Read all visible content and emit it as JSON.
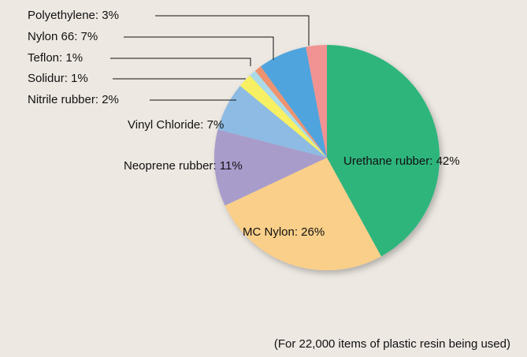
{
  "chart_data": {
    "type": "pie",
    "categories": [
      "Urethane rubber: 42%",
      "MC Nylon: 26%",
      "Neoprene rubber: 11%",
      "Vinyl Chloride: 7%",
      "Nitrile rubber: 2%",
      "Solidur: 1%",
      "Teflon: 1%",
      "Nylon 66: 7%",
      "Polyethylene:  3%"
    ],
    "values": [
      42,
      26,
      11,
      7,
      2,
      1,
      1,
      7,
      3
    ],
    "colors": [
      "#2fb57b",
      "#f9cf89",
      "#a89ccb",
      "#8dbbe3",
      "#f7f064",
      "#a9dbe9",
      "#ef9270",
      "#4fa4dd",
      "#f09392"
    ],
    "note": "(For 22,000 items of plastic resin being used)"
  }
}
